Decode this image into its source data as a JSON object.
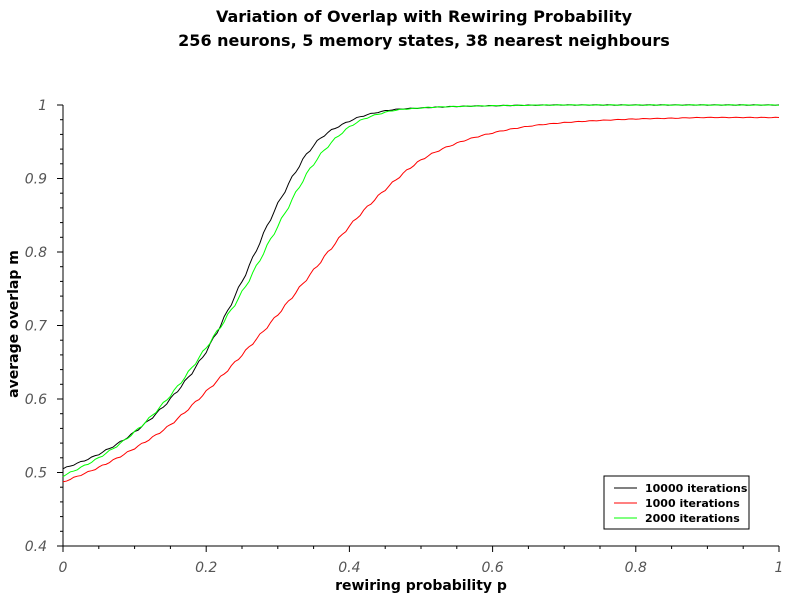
{
  "chart_data": {
    "type": "line",
    "title": "Variation of Overlap with Rewiring Probability",
    "subtitle": "256 neurons, 5 memory states, 38 nearest neighbours",
    "xlabel": "rewiring probability p",
    "ylabel": "average overlap m",
    "xlim": [
      0,
      1
    ],
    "ylim": [
      0.4,
      1
    ],
    "x_ticks": [
      0,
      0.2,
      0.4,
      0.6,
      0.8,
      1
    ],
    "x_tick_labels": [
      "0",
      "0.2",
      "0.4",
      "0.6",
      "0.8",
      "1"
    ],
    "y_ticks": [
      0.4,
      0.5,
      0.6,
      0.7,
      0.8,
      0.9,
      1
    ],
    "y_tick_labels": [
      "0.4",
      "0.5",
      "0.6",
      "0.7",
      "0.8",
      "0.9",
      "1"
    ],
    "legend_position": "bottom-right",
    "grid": false,
    "series": [
      {
        "name": "10000 iterations",
        "color": "#000000",
        "x": [
          0,
          0.05,
          0.1,
          0.15,
          0.2,
          0.25,
          0.3,
          0.35,
          0.4,
          0.45,
          0.5,
          0.55,
          0.6,
          0.7,
          0.8,
          0.9,
          1.0
        ],
        "y": [
          0.505,
          0.525,
          0.555,
          0.6,
          0.665,
          0.76,
          0.865,
          0.945,
          0.978,
          0.992,
          0.996,
          0.998,
          0.999,
          1.0,
          1.0,
          1.0,
          1.0
        ]
      },
      {
        "name": "1000 iterations",
        "color": "#ff0000",
        "x": [
          0,
          0.05,
          0.1,
          0.15,
          0.2,
          0.25,
          0.3,
          0.35,
          0.4,
          0.45,
          0.5,
          0.55,
          0.6,
          0.65,
          0.7,
          0.75,
          0.8,
          0.85,
          0.9,
          1.0
        ],
        "y": [
          0.487,
          0.507,
          0.533,
          0.565,
          0.61,
          0.66,
          0.715,
          0.775,
          0.835,
          0.885,
          0.925,
          0.948,
          0.962,
          0.971,
          0.976,
          0.979,
          0.981,
          0.982,
          0.983,
          0.983
        ]
      },
      {
        "name": "2000 iterations",
        "color": "#00ff00",
        "x": [
          0,
          0.05,
          0.1,
          0.15,
          0.2,
          0.25,
          0.3,
          0.35,
          0.4,
          0.45,
          0.5,
          0.55,
          0.6,
          0.7,
          0.8,
          0.9,
          1.0
        ],
        "y": [
          0.495,
          0.52,
          0.555,
          0.605,
          0.67,
          0.745,
          0.835,
          0.92,
          0.97,
          0.99,
          0.996,
          0.998,
          0.999,
          1.0,
          1.0,
          1.0,
          1.0
        ]
      }
    ]
  }
}
